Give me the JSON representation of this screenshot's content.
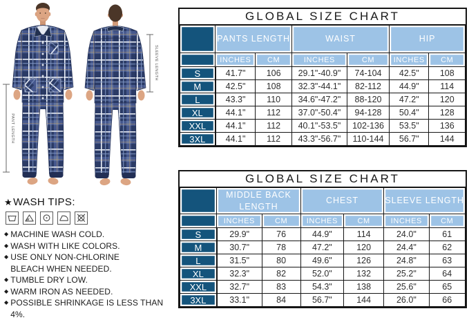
{
  "colors": {
    "dark_blue": "#14547c",
    "light_blue": "#9dc3e6",
    "grid_black": "#151515",
    "pajama_navy": "#2b3b66"
  },
  "figure": {
    "pant_length_label": "PANT LENGTH",
    "sleeve_length_label": "SLEEVE LENGTH"
  },
  "wash": {
    "star": "★",
    "title": "WASH TIPS:",
    "bullet": "◆",
    "icons": [
      "machine-wash-icon",
      "non-chlorine-bleach-icon",
      "tumble-dry-low-icon",
      "iron-icon",
      "do-not-dry-clean-icon"
    ],
    "tips": [
      "MACHINE WASH COLD.",
      "WASH WITH LIKE COLORS.",
      "USE ONLY NON-CHLORINE\nBLEACH WHEN NEEDED.",
      "TUMBLE DRY LOW.",
      "WARM IRON AS NEEDED.",
      "POSSIBLE SHRINKAGE IS LESS THAN 4%."
    ]
  },
  "tables": [
    {
      "title": "GLOBAL SIZE CHART",
      "groups": [
        "PANTS LENGTH",
        "WAIST",
        "HIP"
      ],
      "units": [
        "INCHES",
        "CM"
      ],
      "rows": [
        {
          "size": "S",
          "values": [
            "41.7\"",
            "106",
            "29.1\"-40.9\"",
            "74-104",
            "42.5\"",
            "108"
          ]
        },
        {
          "size": "M",
          "values": [
            "42.5\"",
            "108",
            "32.3\"-44.1\"",
            "82-112",
            "44.9\"",
            "114"
          ]
        },
        {
          "size": "L",
          "values": [
            "43.3\"",
            "110",
            "34.6\"-47.2\"",
            "88-120",
            "47.2\"",
            "120"
          ]
        },
        {
          "size": "XL",
          "values": [
            "44.1\"",
            "112",
            "37.0\"-50.4\"",
            "94-128",
            "50.4\"",
            "128"
          ]
        },
        {
          "size": "XXL",
          "values": [
            "44.1\"",
            "112",
            "40.1\"-53.5\"",
            "102-136",
            "53.5\"",
            "136"
          ]
        },
        {
          "size": "3XL",
          "values": [
            "44.1\"",
            "112",
            "43.3\"-56.7\"",
            "110-144",
            "56.7\"",
            "144"
          ]
        }
      ]
    },
    {
      "title": "GLOBAL SIZE CHART",
      "groups": [
        "MIDDLE BACK LENGTH",
        "CHEST",
        "SLEEVE LENGTH"
      ],
      "units": [
        "INCHES",
        "CM"
      ],
      "rows": [
        {
          "size": "S",
          "values": [
            "29.9\"",
            "76",
            "44.9\"",
            "114",
            "24.0\"",
            "61"
          ]
        },
        {
          "size": "M",
          "values": [
            "30.7\"",
            "78",
            "47.2\"",
            "120",
            "24.4\"",
            "62"
          ]
        },
        {
          "size": "L",
          "values": [
            "31.5\"",
            "80",
            "49.6\"",
            "126",
            "24.8\"",
            "63"
          ]
        },
        {
          "size": "XL",
          "values": [
            "32.3\"",
            "82",
            "52.0\"",
            "132",
            "25.2\"",
            "64"
          ]
        },
        {
          "size": "XXL",
          "values": [
            "32.7\"",
            "83",
            "54.3\"",
            "138",
            "25.6\"",
            "65"
          ]
        },
        {
          "size": "3XL",
          "values": [
            "33.1\"",
            "84",
            "56.7\"",
            "144",
            "26.0\"",
            "66"
          ]
        }
      ]
    }
  ]
}
